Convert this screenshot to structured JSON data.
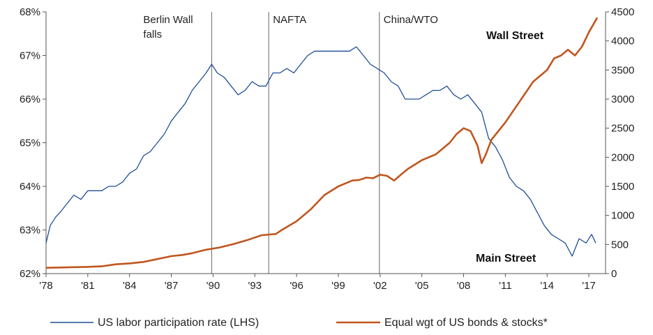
{
  "chart_data": {
    "type": "line",
    "x_ticks": [
      "'78",
      "'81",
      "'84",
      "'87",
      "'90",
      "'93",
      "'96",
      "'99",
      "'02",
      "'05",
      "'08",
      "'11",
      "'14",
      "'17"
    ],
    "y_left_ticks": [
      "62%",
      "63%",
      "64%",
      "65%",
      "66%",
      "67%",
      "68%"
    ],
    "y_left_range": [
      62,
      68
    ],
    "y_right_ticks": [
      "0",
      "500",
      "1000",
      "1500",
      "2000",
      "2500",
      "3000",
      "3500",
      "4000",
      "4500"
    ],
    "y_right_range": [
      0,
      4500
    ],
    "x_range": [
      1978,
      2018.2
    ],
    "grid": false,
    "events": [
      {
        "year": 1989.9,
        "lines": [
          "Berlin Wall",
          "falls"
        ]
      },
      {
        "year": 1994.0,
        "lines": [
          "NAFTA"
        ]
      },
      {
        "year": 2001.95,
        "lines": [
          "China/WTO"
        ]
      }
    ],
    "annotations": {
      "wall_street": "Wall Street",
      "main_street": "Main Street"
    },
    "series": [
      {
        "name": "US labor participation rate (LHS)",
        "axis": "left",
        "color": "#1f4e96",
        "points": [
          [
            1978.0,
            62.7
          ],
          [
            1978.3,
            63.1
          ],
          [
            1978.7,
            63.3
          ],
          [
            1979.0,
            63.4
          ],
          [
            1979.5,
            63.6
          ],
          [
            1980.0,
            63.8
          ],
          [
            1980.5,
            63.7
          ],
          [
            1981.0,
            63.9
          ],
          [
            1981.5,
            63.9
          ],
          [
            1982.0,
            63.9
          ],
          [
            1982.5,
            64.0
          ],
          [
            1983.0,
            64.0
          ],
          [
            1983.5,
            64.1
          ],
          [
            1984.0,
            64.3
          ],
          [
            1984.5,
            64.4
          ],
          [
            1985.0,
            64.7
          ],
          [
            1985.5,
            64.8
          ],
          [
            1986.0,
            65.0
          ],
          [
            1986.5,
            65.2
          ],
          [
            1987.0,
            65.5
          ],
          [
            1987.5,
            65.7
          ],
          [
            1988.0,
            65.9
          ],
          [
            1988.5,
            66.2
          ],
          [
            1989.0,
            66.4
          ],
          [
            1989.5,
            66.6
          ],
          [
            1989.9,
            66.8
          ],
          [
            1990.3,
            66.6
          ],
          [
            1990.8,
            66.5
          ],
          [
            1991.3,
            66.3
          ],
          [
            1991.8,
            66.1
          ],
          [
            1992.3,
            66.2
          ],
          [
            1992.8,
            66.4
          ],
          [
            1993.3,
            66.3
          ],
          [
            1993.8,
            66.3
          ],
          [
            1994.3,
            66.6
          ],
          [
            1994.8,
            66.6
          ],
          [
            1995.3,
            66.7
          ],
          [
            1995.8,
            66.6
          ],
          [
            1996.3,
            66.8
          ],
          [
            1996.8,
            67.0
          ],
          [
            1997.3,
            67.1
          ],
          [
            1997.8,
            67.1
          ],
          [
            1998.3,
            67.1
          ],
          [
            1998.8,
            67.1
          ],
          [
            1999.3,
            67.1
          ],
          [
            1999.8,
            67.1
          ],
          [
            2000.3,
            67.2
          ],
          [
            2000.8,
            67.0
          ],
          [
            2001.3,
            66.8
          ],
          [
            2001.8,
            66.7
          ],
          [
            2002.3,
            66.6
          ],
          [
            2002.8,
            66.4
          ],
          [
            2003.3,
            66.3
          ],
          [
            2003.8,
            66.0
          ],
          [
            2004.3,
            66.0
          ],
          [
            2004.8,
            66.0
          ],
          [
            2005.3,
            66.1
          ],
          [
            2005.8,
            66.2
          ],
          [
            2006.3,
            66.2
          ],
          [
            2006.8,
            66.3
          ],
          [
            2007.3,
            66.1
          ],
          [
            2007.8,
            66.0
          ],
          [
            2008.3,
            66.1
          ],
          [
            2008.8,
            65.9
          ],
          [
            2009.3,
            65.7
          ],
          [
            2009.8,
            65.1
          ],
          [
            2010.3,
            64.9
          ],
          [
            2010.8,
            64.6
          ],
          [
            2011.3,
            64.2
          ],
          [
            2011.8,
            64.0
          ],
          [
            2012.3,
            63.9
          ],
          [
            2012.8,
            63.7
          ],
          [
            2013.3,
            63.4
          ],
          [
            2013.8,
            63.1
          ],
          [
            2014.3,
            62.9
          ],
          [
            2014.8,
            62.8
          ],
          [
            2015.3,
            62.7
          ],
          [
            2015.8,
            62.4
          ],
          [
            2016.3,
            62.8
          ],
          [
            2016.8,
            62.7
          ],
          [
            2017.2,
            62.9
          ],
          [
            2017.5,
            62.7
          ]
        ]
      },
      {
        "name": "Equal wgt of US bonds & stocks*",
        "axis": "right",
        "color": "#c0561f",
        "points": [
          [
            1978.0,
            100
          ],
          [
            1979.0,
            105
          ],
          [
            1980.0,
            110
          ],
          [
            1981.0,
            115
          ],
          [
            1982.0,
            125
          ],
          [
            1983.0,
            160
          ],
          [
            1984.0,
            175
          ],
          [
            1985.0,
            200
          ],
          [
            1986.0,
            250
          ],
          [
            1987.0,
            300
          ],
          [
            1987.8,
            320
          ],
          [
            1988.5,
            350
          ],
          [
            1989.5,
            410
          ],
          [
            1990.5,
            450
          ],
          [
            1991.5,
            510
          ],
          [
            1992.5,
            580
          ],
          [
            1993.5,
            660
          ],
          [
            1994.5,
            680
          ],
          [
            1995.0,
            760
          ],
          [
            1996.0,
            900
          ],
          [
            1997.0,
            1100
          ],
          [
            1998.0,
            1350
          ],
          [
            1999.0,
            1500
          ],
          [
            2000.0,
            1600
          ],
          [
            2000.5,
            1610
          ],
          [
            2001.0,
            1650
          ],
          [
            2001.5,
            1640
          ],
          [
            2002.0,
            1700
          ],
          [
            2002.5,
            1680
          ],
          [
            2003.0,
            1600
          ],
          [
            2003.5,
            1700
          ],
          [
            2004.0,
            1800
          ],
          [
            2005.0,
            1950
          ],
          [
            2006.0,
            2050
          ],
          [
            2007.0,
            2250
          ],
          [
            2007.5,
            2400
          ],
          [
            2008.0,
            2500
          ],
          [
            2008.5,
            2450
          ],
          [
            2009.0,
            2200
          ],
          [
            2009.3,
            1900
          ],
          [
            2009.6,
            2050
          ],
          [
            2010.0,
            2300
          ],
          [
            2011.0,
            2600
          ],
          [
            2012.0,
            2950
          ],
          [
            2013.0,
            3300
          ],
          [
            2014.0,
            3500
          ],
          [
            2014.5,
            3700
          ],
          [
            2015.0,
            3750
          ],
          [
            2015.5,
            3850
          ],
          [
            2016.0,
            3750
          ],
          [
            2016.5,
            3900
          ],
          [
            2017.0,
            4150
          ],
          [
            2017.6,
            4400
          ]
        ]
      }
    ]
  }
}
